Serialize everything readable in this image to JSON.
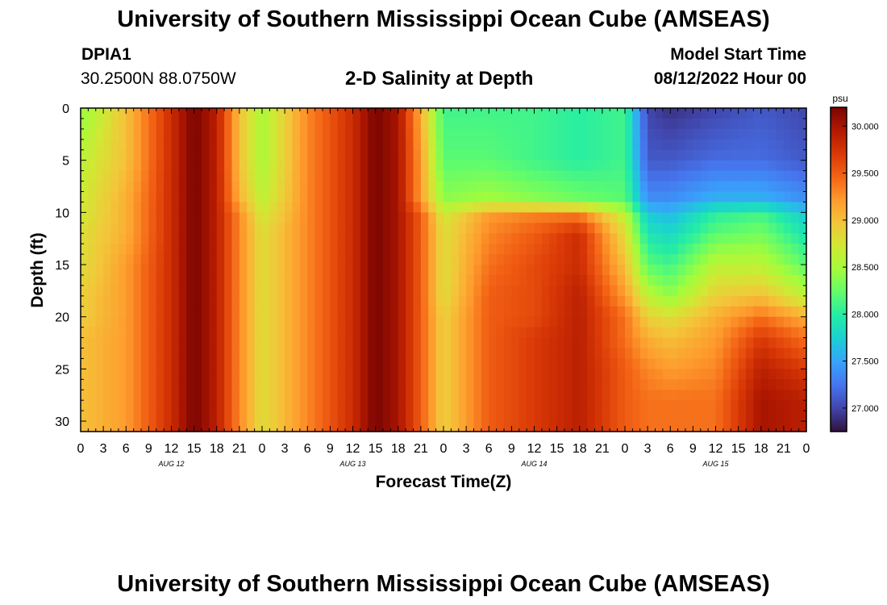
{
  "header": {
    "main_title": "University of Southern Mississippi Ocean Cube (AMSEAS)",
    "station_id": "DPIA1",
    "station_coords": "30.2500N  88.0750W",
    "plot_title": "2-D Salinity at Depth",
    "start_label": "Model Start Time",
    "start_value": "08/12/2022 Hour 00"
  },
  "footer": {
    "title": "University of Southern Mississippi Ocean Cube (AMSEAS)"
  },
  "colors": {
    "background": "#ffffff",
    "axis": "#000000",
    "colormap": [
      "#30123b",
      "#4145ab",
      "#4675ed",
      "#39a2fc",
      "#1bcfd4",
      "#24eca6",
      "#61fc6c",
      "#a4fc3b",
      "#d1e834",
      "#f3c63a",
      "#fe9b2d",
      "#f36315",
      "#d93806",
      "#b11901",
      "#7a0402"
    ]
  },
  "chart_data": {
    "type": "heatmap",
    "title": "2-D Salinity at Depth",
    "xlabel": "Forecast Time(Z)",
    "ylabel": "Depth (ft)",
    "x_range_hours": [
      0,
      96
    ],
    "x_ticks": [
      0,
      3,
      6,
      9,
      12,
      15,
      18,
      21,
      24,
      27,
      30,
      33,
      36,
      39,
      42,
      45,
      48,
      51,
      54,
      57,
      60,
      63,
      66,
      69,
      72,
      75,
      78,
      81,
      84,
      87,
      90,
      93,
      96
    ],
    "x_tick_labels": [
      "0",
      "3",
      "6",
      "9",
      "12",
      "15",
      "18",
      "21",
      "0",
      "3",
      "6",
      "9",
      "12",
      "15",
      "18",
      "21",
      "0",
      "3",
      "6",
      "9",
      "12",
      "15",
      "18",
      "21",
      "0",
      "3",
      "6",
      "9",
      "12",
      "15",
      "18",
      "21",
      "0"
    ],
    "day_labels": [
      {
        "hour": 12,
        "label": "AUG 12"
      },
      {
        "hour": 36,
        "label": "AUG 13"
      },
      {
        "hour": 60,
        "label": "AUG 14"
      },
      {
        "hour": 84,
        "label": "AUG 15"
      }
    ],
    "y_range_ft": [
      0,
      31
    ],
    "y_ticks": [
      0,
      5,
      10,
      15,
      20,
      25,
      30
    ],
    "y_tick_labels": [
      "0",
      "5",
      "10",
      "15",
      "20",
      "25",
      "30"
    ],
    "colorbar": {
      "unit": "psu",
      "range": [
        26.75,
        30.2
      ],
      "ticks": [
        27.0,
        27.5,
        28.0,
        28.5,
        29.0,
        29.5,
        30.0
      ],
      "tick_labels": [
        "27.000",
        "27.500",
        "28.000",
        "28.500",
        "29.000",
        "29.500",
        "30.000"
      ]
    },
    "grid_hours": [
      0,
      6,
      12,
      15,
      18,
      21,
      24,
      30,
      36,
      39,
      42,
      45,
      48,
      54,
      60,
      66,
      72,
      75,
      78,
      84,
      90,
      96
    ],
    "grid_depths_ft": [
      0,
      5,
      9,
      10,
      12,
      15,
      18,
      20,
      22,
      25,
      28,
      31
    ],
    "grid_psu": [
      [
        28.4,
        28.6,
        28.7,
        28.7,
        28.8,
        28.8,
        28.9,
        28.9,
        29.0,
        29.0,
        29.0,
        29.0
      ],
      [
        29.0,
        29.0,
        29.1,
        29.1,
        29.1,
        29.2,
        29.2,
        29.2,
        29.2,
        29.2,
        29.2,
        29.2
      ],
      [
        29.8,
        29.8,
        29.8,
        29.8,
        29.8,
        29.8,
        29.8,
        29.8,
        29.8,
        29.8,
        29.8,
        29.8
      ],
      [
        30.2,
        30.2,
        30.2,
        30.2,
        30.2,
        30.2,
        30.2,
        30.2,
        30.2,
        30.2,
        30.2,
        30.2
      ],
      [
        29.9,
        29.9,
        29.9,
        29.9,
        29.9,
        29.9,
        29.9,
        29.9,
        29.9,
        29.9,
        29.9,
        29.9
      ],
      [
        29.0,
        29.0,
        29.1,
        29.3,
        29.3,
        29.3,
        29.3,
        29.3,
        29.3,
        29.3,
        29.3,
        29.3
      ],
      [
        28.5,
        28.5,
        28.6,
        28.7,
        28.8,
        28.8,
        28.8,
        28.8,
        28.8,
        28.8,
        28.8,
        28.8
      ],
      [
        29.3,
        29.3,
        29.3,
        29.3,
        29.3,
        29.3,
        29.3,
        29.3,
        29.3,
        29.3,
        29.3,
        29.3
      ],
      [
        29.8,
        29.8,
        29.8,
        29.8,
        29.8,
        29.8,
        29.8,
        29.8,
        29.8,
        29.8,
        29.8,
        29.8
      ],
      [
        30.2,
        30.2,
        30.2,
        30.2,
        30.2,
        30.2,
        30.2,
        30.2,
        30.2,
        30.2,
        30.2,
        30.2
      ],
      [
        30.0,
        30.0,
        30.0,
        30.0,
        30.0,
        30.0,
        30.0,
        30.0,
        30.0,
        30.0,
        30.0,
        30.0
      ],
      [
        29.1,
        29.2,
        29.2,
        29.5,
        29.5,
        29.5,
        29.5,
        29.5,
        29.5,
        29.5,
        29.5,
        29.5
      ],
      [
        28.1,
        28.2,
        28.4,
        28.7,
        28.8,
        28.8,
        28.8,
        28.9,
        28.9,
        28.9,
        28.9,
        28.9
      ],
      [
        28.1,
        28.2,
        28.5,
        29.2,
        29.3,
        29.4,
        29.5,
        29.5,
        29.5,
        29.5,
        29.5,
        29.5
      ],
      [
        28.1,
        28.1,
        28.4,
        29.3,
        29.5,
        29.6,
        29.6,
        29.6,
        29.7,
        29.7,
        29.7,
        29.7
      ],
      [
        28.0,
        28.0,
        28.3,
        29.3,
        29.8,
        29.8,
        29.9,
        29.9,
        29.9,
        29.9,
        29.9,
        29.9
      ],
      [
        28.1,
        28.1,
        28.2,
        28.6,
        28.8,
        29.0,
        29.2,
        29.4,
        29.4,
        29.5,
        29.5,
        29.5
      ],
      [
        27.0,
        27.1,
        27.4,
        27.7,
        27.9,
        28.2,
        28.6,
        28.9,
        29.1,
        29.3,
        29.4,
        29.4
      ],
      [
        26.9,
        27.1,
        27.4,
        27.6,
        27.8,
        28.1,
        28.4,
        28.8,
        29.0,
        29.2,
        29.4,
        29.4
      ],
      [
        27.0,
        27.2,
        27.6,
        28.0,
        28.2,
        28.6,
        28.9,
        29.1,
        29.2,
        29.3,
        29.4,
        29.4
      ],
      [
        27.1,
        27.2,
        27.6,
        28.1,
        28.3,
        28.6,
        29.0,
        29.4,
        29.7,
        29.9,
        30.0,
        30.0
      ],
      [
        27.0,
        27.1,
        27.4,
        27.7,
        27.9,
        28.2,
        28.6,
        29.1,
        29.4,
        29.7,
        29.9,
        29.9
      ]
    ]
  }
}
